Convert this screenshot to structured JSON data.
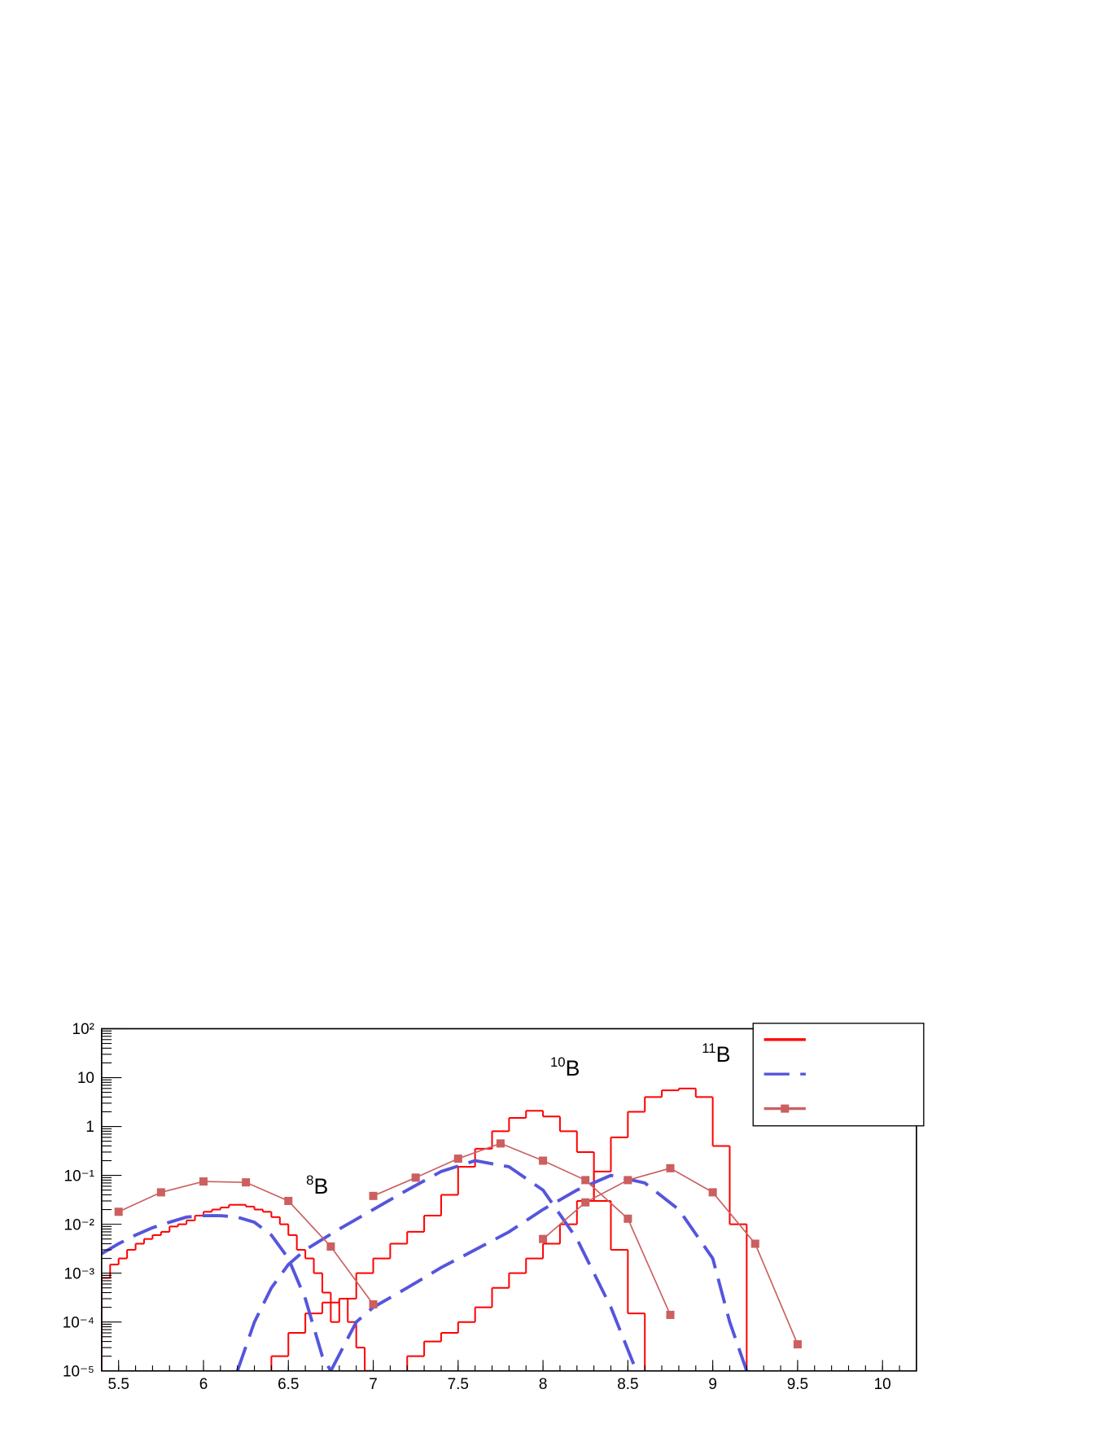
{
  "chart_data": {
    "type": "histogram-line",
    "log_y": true,
    "xlim": [
      5.4,
      10.2
    ],
    "ylim": [
      1e-05,
      100
    ],
    "xticks": [
      5.5,
      6,
      6.5,
      7,
      7.5,
      8,
      8.5,
      9,
      9.5,
      10
    ],
    "yticks": [
      {
        "value": 1e-05,
        "label": "10⁻⁵"
      },
      {
        "value": 0.0001,
        "label": "10⁻⁴"
      },
      {
        "value": 0.001,
        "label": "10⁻³"
      },
      {
        "value": 0.01,
        "label": "10⁻²"
      },
      {
        "value": 0.1,
        "label": "10⁻¹"
      },
      1,
      10,
      {
        "value": 100,
        "label": "10²"
      }
    ],
    "annotations": [
      {
        "sup": "8",
        "text": "B"
      },
      {
        "sup": "10",
        "text": "B"
      },
      {
        "sup": "11",
        "text": "B"
      }
    ],
    "series": [
      {
        "style": "step",
        "color": "#ff0000",
        "bins": [
          5.4,
          5.45,
          5.5,
          5.55,
          5.6,
          5.65,
          5.7,
          5.75,
          5.8,
          5.85,
          5.9,
          5.95,
          6.0,
          6.05,
          6.1,
          6.15,
          6.2,
          6.25,
          6.3,
          6.35,
          6.4,
          6.45,
          6.5,
          6.55,
          6.6,
          6.65,
          6.7,
          6.75,
          6.8,
          6.85,
          6.9,
          6.95,
          7.0
        ],
        "values": [
          0.0008,
          0.0015,
          0.002,
          0.003,
          0.004,
          0.005,
          0.006,
          0.007,
          0.009,
          0.01,
          0.012,
          0.015,
          0.018,
          0.02,
          0.022,
          0.025,
          0.025,
          0.023,
          0.02,
          0.018,
          0.014,
          0.01,
          0.006,
          0.003,
          0.002,
          0.001,
          0.0004,
          0.0001,
          0.0003,
          0.0001,
          3e-05,
          1e-05
        ]
      },
      {
        "style": "step",
        "color": "#ff0000",
        "bins": [
          6.4,
          6.5,
          6.6,
          6.7,
          6.8,
          6.9,
          7.0,
          7.1,
          7.2,
          7.3,
          7.4,
          7.5,
          7.6,
          7.7,
          7.8,
          7.9,
          8.0,
          8.1,
          8.2,
          8.3,
          8.4,
          8.5,
          8.6
        ],
        "values": [
          2e-05,
          6e-05,
          0.00015,
          0.00025,
          0.0003,
          0.001,
          0.002,
          0.004,
          0.007,
          0.015,
          0.04,
          0.15,
          0.35,
          0.8,
          1.5,
          2.1,
          1.6,
          0.8,
          0.3,
          0.03,
          0.003,
          0.00015
        ]
      },
      {
        "style": "step",
        "color": "#ff0000",
        "bins": [
          7.2,
          7.3,
          7.4,
          7.5,
          7.6,
          7.7,
          7.8,
          7.9,
          8.0,
          8.1,
          8.2,
          8.3,
          8.4,
          8.5,
          8.6,
          8.7,
          8.8,
          8.9,
          9.0,
          9.1,
          9.2
        ],
        "values": [
          2e-05,
          4e-05,
          6e-05,
          0.0001,
          0.0002,
          0.0005,
          0.001,
          0.002,
          0.004,
          0.01,
          0.03,
          0.12,
          0.6,
          2,
          4,
          5.5,
          6,
          4,
          0.4,
          0.01
        ]
      },
      {
        "style": "dashed",
        "color": "#5555dd",
        "x": [
          5.4,
          5.5,
          5.6,
          5.7,
          5.8,
          5.9,
          6.0,
          6.1,
          6.2,
          6.3,
          6.4,
          6.5,
          6.6,
          6.7,
          6.75
        ],
        "values": [
          0.0025,
          0.004,
          0.006,
          0.0085,
          0.011,
          0.014,
          0.015,
          0.015,
          0.014,
          0.011,
          0.006,
          0.002,
          0.0003,
          2e-05,
          1e-05
        ]
      },
      {
        "style": "dashed",
        "color": "#5555dd",
        "x": [
          6.2,
          6.3,
          6.4,
          6.5,
          6.6,
          6.8,
          7.0,
          7.2,
          7.4,
          7.6,
          7.8,
          8.0,
          8.2,
          8.4,
          8.55
        ],
        "values": [
          1e-05,
          0.0001,
          0.0005,
          0.0015,
          0.003,
          0.008,
          0.02,
          0.05,
          0.12,
          0.2,
          0.15,
          0.05,
          0.005,
          0.0002,
          1e-05
        ]
      },
      {
        "style": "dashed",
        "color": "#5555dd",
        "x": [
          6.75,
          6.9,
          7.0,
          7.2,
          7.4,
          7.6,
          7.8,
          8.0,
          8.2,
          8.4,
          8.6,
          8.8,
          9.0,
          9.1,
          9.2
        ],
        "values": [
          1e-05,
          0.0001,
          0.0002,
          0.0005,
          0.0013,
          0.003,
          0.007,
          0.02,
          0.05,
          0.1,
          0.07,
          0.02,
          0.002,
          0.0001,
          1e-05
        ]
      },
      {
        "style": "markers",
        "color": "#cc5f5f",
        "x": [
          5.5,
          5.75,
          6.0,
          6.25,
          6.5,
          6.75,
          7.0
        ],
        "values": [
          0.018,
          0.045,
          0.075,
          0.072,
          0.03,
          0.0035,
          0.00023
        ]
      },
      {
        "style": "markers",
        "color": "#cc5f5f",
        "x": [
          7.0,
          7.25,
          7.5,
          7.75,
          8.0,
          8.25,
          8.5,
          8.75
        ],
        "values": [
          0.038,
          0.09,
          0.22,
          0.45,
          0.2,
          0.08,
          0.013,
          0.00014
        ]
      },
      {
        "style": "markers",
        "color": "#cc5f5f",
        "x": [
          8.0,
          8.25,
          8.5,
          8.75,
          9.0,
          9.25,
          9.5
        ],
        "values": [
          0.005,
          0.028,
          0.08,
          0.14,
          0.045,
          0.004,
          3.5e-05
        ]
      }
    ]
  }
}
